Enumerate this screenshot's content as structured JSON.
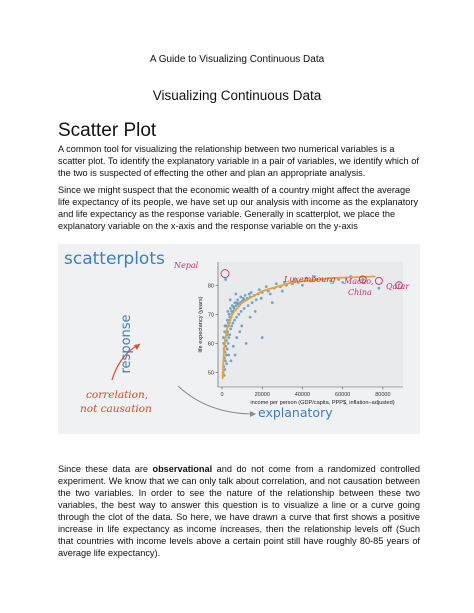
{
  "document": {
    "header": "A Guide to Visualizing Continuous Data",
    "section_title": "Visualizing Continuous Data",
    "heading": "Scatter Plot",
    "paragraph1": "A common tool for visualizing the relationship between two numerical variables is a scatter plot. To identify the explanatory variable in a pair of variables, we identify which of the two is suspected of effecting the other and plan an appropriate analysis.",
    "paragraph2": "Since we might suspect that the economic wealth of a country might affect the average life expectancy of its people, we have set up our analysis with income as the explanatory and life expectancy as the response variable. Generally in scatterplot, we place the explanatory variable on the x-axis and the response variable on the y-axis",
    "paragraph3_before": "Since these data are ",
    "paragraph3_bold": "observational",
    "paragraph3_after": " and do not come from a randomized controlled experiment. We know that we can only talk about correlation, and not causation between the two variables. In order to see the nature of the relationship between these two variables, the best way to answer this question is to visualize a line or a curve going through the clot of the data. So here, we have drawn a curve that first shows a positive increase in life expectancy as income increases, then the relationship levels off (Such that countries with income levels above a certain point still have roughly 80-85 years of average life expectancy)."
  },
  "figure": {
    "title": "scatterplots",
    "response_label": "response",
    "explanatory_label": "explanatory",
    "correlation_note_line1": "correlation,",
    "correlation_note_line2": "not causation",
    "annotations": {
      "nepal": "Nepal",
      "luxembourg": "Luxembourg",
      "macao_line1": "Macao,",
      "macao_line2": "China",
      "qatar": "Qatar"
    },
    "colors": {
      "title": "#3a7fc4",
      "points": "#5b9bc8",
      "curve": "#f0a030",
      "annotation": "#c83278",
      "luxembourg": "#d03020"
    }
  },
  "chart_data": {
    "type": "scatter",
    "xlabel": "income per person (GDP/capita, PPP$, inflation–adjusted)",
    "ylabel": "life expectancy (years)",
    "xlim": [
      -2000,
      90000
    ],
    "ylim": [
      45,
      88
    ],
    "x_ticks": [
      0,
      20000,
      40000,
      60000,
      80000
    ],
    "x_tick_labels": [
      "0",
      "20000",
      "40000",
      "60000",
      "80000"
    ],
    "y_ticks": [
      50,
      60,
      70,
      80
    ],
    "y_tick_labels": [
      "50",
      "60",
      "70",
      "80"
    ],
    "points": [
      [
        1800,
        82
      ],
      [
        600,
        50
      ],
      [
        900,
        52
      ],
      [
        1200,
        55
      ],
      [
        1500,
        57
      ],
      [
        1900,
        59
      ],
      [
        2200,
        61
      ],
      [
        2500,
        63
      ],
      [
        2800,
        64
      ],
      [
        3200,
        66
      ],
      [
        3600,
        67
      ],
      [
        4000,
        68
      ],
      [
        4500,
        69
      ],
      [
        5000,
        70
      ],
      [
        5500,
        71
      ],
      [
        6000,
        72
      ],
      [
        7000,
        73
      ],
      [
        8000,
        73.5
      ],
      [
        9000,
        74
      ],
      [
        10000,
        74.5
      ],
      [
        11000,
        75
      ],
      [
        12500,
        75.5
      ],
      [
        14000,
        76
      ],
      [
        16000,
        76.5
      ],
      [
        18000,
        77
      ],
      [
        20000,
        77.5
      ],
      [
        23000,
        78
      ],
      [
        26000,
        79
      ],
      [
        29000,
        79.5
      ],
      [
        32000,
        80
      ],
      [
        35000,
        80.5
      ],
      [
        38000,
        81
      ],
      [
        41000,
        81.5
      ],
      [
        44000,
        81.5
      ],
      [
        47000,
        82
      ],
      [
        50000,
        82
      ],
      [
        54000,
        81.5
      ],
      [
        58000,
        82
      ],
      [
        1100,
        49
      ],
      [
        1400,
        51
      ],
      [
        1700,
        54
      ],
      [
        2100,
        56
      ],
      [
        2600,
        58
      ],
      [
        3000,
        60
      ],
      [
        3400,
        62
      ],
      [
        3800,
        63
      ],
      [
        4300,
        65
      ],
      [
        4800,
        66
      ],
      [
        5400,
        67
      ],
      [
        6200,
        68
      ],
      [
        7200,
        69
      ],
      [
        8300,
        70
      ],
      [
        9500,
        71
      ],
      [
        11000,
        72
      ],
      [
        13000,
        73
      ],
      [
        15000,
        74
      ],
      [
        17000,
        75
      ],
      [
        19500,
        75.5
      ],
      [
        800,
        60
      ],
      [
        1300,
        64
      ],
      [
        2000,
        66
      ],
      [
        2700,
        68
      ],
      [
        3500,
        70
      ],
      [
        4200,
        72
      ],
      [
        5100,
        73
      ],
      [
        6400,
        74
      ],
      [
        7800,
        75
      ],
      [
        9300,
        76
      ],
      [
        11500,
        76.5
      ],
      [
        14500,
        77.5
      ],
      [
        18500,
        78.5
      ],
      [
        22000,
        79.5
      ],
      [
        27000,
        80.5
      ],
      [
        31000,
        81
      ],
      [
        36000,
        82
      ],
      [
        42000,
        82.5
      ],
      [
        46000,
        83
      ],
      [
        1000,
        58
      ],
      [
        1600,
        61
      ],
      [
        2400,
        64
      ],
      [
        3100,
        67
      ],
      [
        3900,
        69
      ],
      [
        4700,
        71
      ],
      [
        5800,
        72.5
      ],
      [
        7500,
        74
      ],
      [
        10500,
        75.5
      ],
      [
        13500,
        77
      ],
      [
        24000,
        77
      ],
      [
        30000,
        78
      ],
      [
        40000,
        80
      ],
      [
        2300,
        53
      ],
      [
        3300,
        56
      ],
      [
        5600,
        59
      ],
      [
        7300,
        62
      ],
      [
        9800,
        66
      ],
      [
        14000,
        69
      ],
      [
        20000,
        62
      ],
      [
        12000,
        60
      ],
      [
        6500,
        56
      ],
      [
        4400,
        54
      ],
      [
        8800,
        64
      ],
      [
        16500,
        71
      ],
      [
        25000,
        74
      ],
      [
        700,
        62
      ],
      [
        1500,
        66
      ],
      [
        2900,
        71
      ],
      [
        4100,
        75
      ],
      [
        6900,
        77
      ],
      [
        60000,
        81
      ],
      [
        70000,
        82
      ],
      [
        64000,
        83
      ],
      [
        78000,
        79
      ]
    ],
    "trend_curve": [
      [
        300,
        48
      ],
      [
        1000,
        58
      ],
      [
        2500,
        65
      ],
      [
        5000,
        70
      ],
      [
        10000,
        74
      ],
      [
        20000,
        78
      ],
      [
        35000,
        81
      ],
      [
        55000,
        82.5
      ],
      [
        76000,
        83
      ]
    ],
    "highlighted": {
      "nepal": [
        1500,
        84
      ],
      "luxembourg": [
        70000,
        82
      ],
      "macao": [
        78000,
        81.5
      ],
      "qatar": [
        88000,
        80
      ]
    }
  }
}
